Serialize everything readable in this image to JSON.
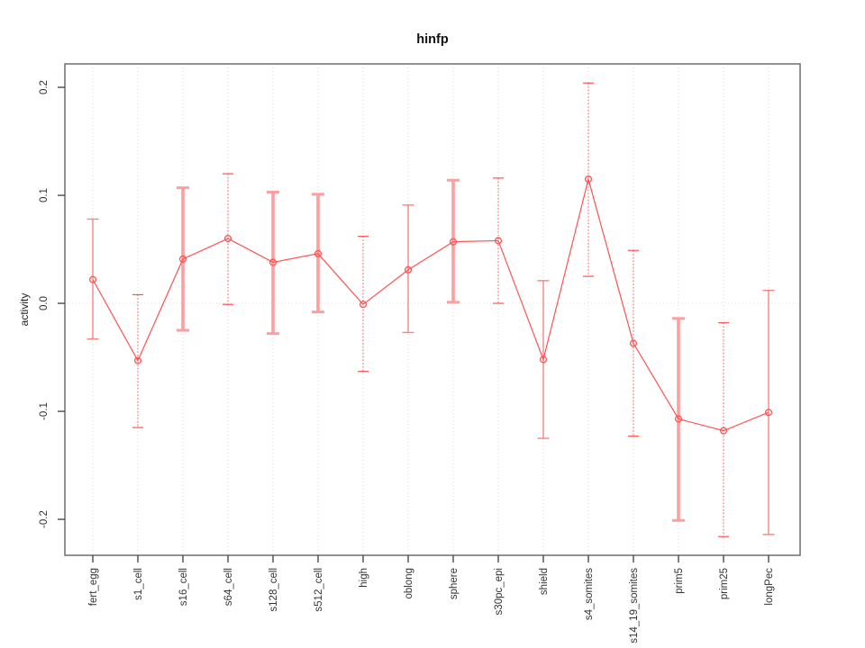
{
  "figure": {
    "title": "hinfp",
    "ylabel": "activity"
  },
  "chart_data": {
    "type": "line",
    "title": "hinfp",
    "xlabel": "",
    "ylabel": "activity",
    "ylim": [
      -0.2333,
      0.2217
    ],
    "yticks": [
      0.2,
      0.1,
      0.0,
      -0.1,
      -0.2
    ],
    "ytick_labels": [
      "0.2",
      "0.1",
      "0.0",
      "-0.1",
      "-0.2"
    ],
    "xtick_label_rotation_deg": -90,
    "grid": "dotted vertical gridline at each category; dotted horizontal line at y=0",
    "legend_position": "none",
    "marker": "open-circle",
    "categories": [
      "fert_egg",
      "s1_cell",
      "s16_cell",
      "s64_cell",
      "s128_cell",
      "s512_cell",
      "high",
      "oblong",
      "sphere",
      "s30pc_epi",
      "shield",
      "s4_somites",
      "s14_19_somites",
      "prim5",
      "prim25",
      "longPec"
    ],
    "series": [
      {
        "name": "activity",
        "values": [
          0.022,
          -0.053,
          0.041,
          0.06,
          0.038,
          0.046,
          -0.001,
          0.031,
          0.057,
          0.058,
          -0.052,
          0.115,
          -0.037,
          -0.107,
          -0.118,
          -0.101
        ],
        "error_lower": [
          -0.033,
          -0.115,
          -0.025,
          -0.001,
          -0.028,
          -0.008,
          -0.063,
          -0.027,
          0.001,
          0.0,
          -0.125,
          0.025,
          -0.123,
          -0.201,
          -0.216,
          -0.214
        ],
        "error_upper": [
          0.078,
          0.008,
          0.107,
          0.12,
          0.103,
          0.101,
          0.062,
          0.091,
          0.114,
          0.116,
          0.021,
          0.204,
          0.049,
          -0.014,
          -0.018,
          0.012
        ],
        "error_bar_styles": [
          "thin",
          "dotted",
          "thick",
          "dotted",
          "thick",
          "thick",
          "dotted",
          "thin",
          "thick",
          "dotted",
          "thin",
          "dotted",
          "dotted",
          "thick",
          "dotted",
          "thin"
        ]
      }
    ],
    "colors": {
      "line": "#ff5252",
      "marker": "#ff5252",
      "error_thick": "#ff9e9e",
      "error_thin": "#ff8080",
      "error_dotted": "#ff5252",
      "grid": "#d8d8d8",
      "box": "#6e6e6e",
      "tick": "#4a4a4a",
      "tick_text": "#333333",
      "title_text": "#111111"
    }
  }
}
